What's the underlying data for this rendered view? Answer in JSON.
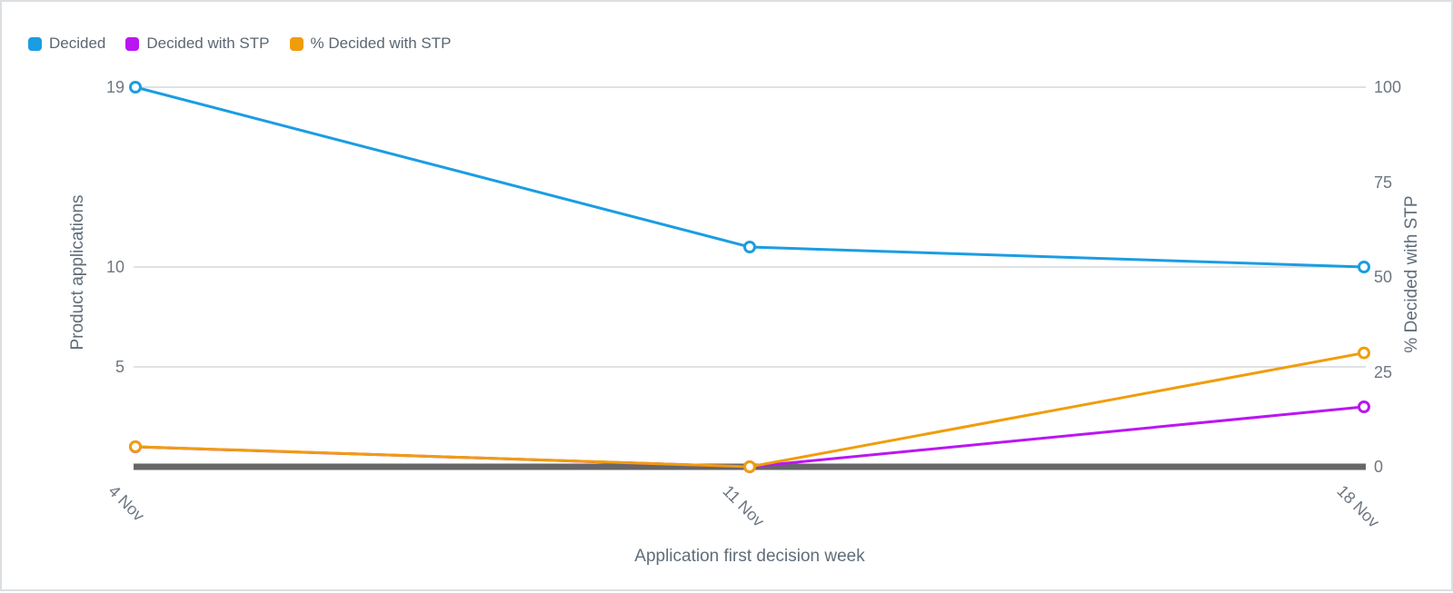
{
  "chart_data": {
    "type": "line",
    "x_categories": [
      "4 Nov",
      "11 Nov",
      "18 Nov"
    ],
    "xlabel": "Application first decision week",
    "left_axis": {
      "label": "Product applications",
      "ticks": [
        19,
        10,
        5
      ],
      "range": [
        0,
        19
      ]
    },
    "right_axis": {
      "label": "% Decided with STP",
      "ticks": [
        100,
        75,
        50,
        25,
        0
      ],
      "range": [
        0,
        100
      ]
    },
    "series": [
      {
        "name": "Decided",
        "axis": "left",
        "color": "#1b9de2",
        "values": [
          19,
          11,
          10
        ]
      },
      {
        "name": "Decided with STP",
        "axis": "left",
        "color": "#ba16f2",
        "values": [
          1,
          0,
          3
        ]
      },
      {
        "name": "% Decided with STP",
        "axis": "right",
        "color": "#f09d0b",
        "values": [
          5.3,
          0,
          30
        ]
      }
    ],
    "marker": "open-circle",
    "grid": "horizontal-at-left-ticks",
    "legend_position": "top-left",
    "colors": {
      "gridline": "#d5d7d9",
      "baseline": "#666669",
      "tick_text": "#6e7780",
      "axis_title_text": "#5f6d7a",
      "legend_text": "#5a6672"
    }
  }
}
